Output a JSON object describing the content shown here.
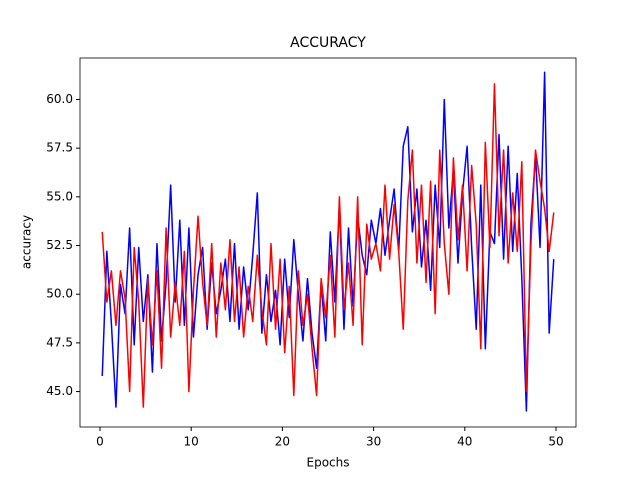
{
  "chart_data": {
    "type": "line",
    "title": "ACCURACY",
    "xlabel": "Epochs",
    "ylabel": "accuracy",
    "x": [
      0.25,
      0.75,
      1.25,
      1.75,
      2.25,
      2.75,
      3.25,
      3.75,
      4.25,
      4.75,
      5.25,
      5.75,
      6.25,
      6.75,
      7.25,
      7.75,
      8.25,
      8.75,
      9.25,
      9.75,
      10.25,
      10.75,
      11.25,
      11.75,
      12.25,
      12.75,
      13.25,
      13.75,
      14.25,
      14.75,
      15.25,
      15.75,
      16.25,
      16.75,
      17.25,
      17.75,
      18.25,
      18.75,
      19.25,
      19.75,
      20.25,
      20.75,
      21.25,
      21.75,
      22.25,
      22.75,
      23.25,
      23.75,
      24.25,
      24.75,
      25.25,
      25.75,
      26.25,
      26.75,
      27.25,
      27.75,
      28.25,
      28.75,
      29.25,
      29.75,
      30.25,
      30.75,
      31.25,
      31.75,
      32.25,
      32.75,
      33.25,
      33.75,
      34.25,
      34.75,
      35.25,
      35.75,
      36.25,
      36.75,
      37.25,
      37.75,
      38.25,
      38.75,
      39.25,
      39.75,
      40.25,
      40.75,
      41.25,
      41.75,
      42.25,
      42.75,
      43.25,
      43.75,
      44.25,
      44.75,
      45.25,
      45.75,
      46.25,
      46.75,
      47.25,
      47.75,
      48.25,
      48.75,
      49.25,
      49.75
    ],
    "series": [
      {
        "color": "#0000ff",
        "values": [
          45.8,
          52.2,
          48.5,
          44.2,
          50.5,
          49,
          53.4,
          47.4,
          52.4,
          48.6,
          51,
          46,
          52.6,
          47.6,
          50.6,
          55.6,
          49.6,
          53.8,
          48.4,
          53.4,
          47.8,
          51,
          52.4,
          48.2,
          51.6,
          49,
          50.2,
          51.8,
          48.6,
          52.6,
          48.2,
          51.4,
          49.2,
          52,
          55.2,
          48,
          51,
          48.6,
          50.2,
          47.4,
          51.8,
          48.8,
          52.8,
          50,
          47.6,
          50.8,
          48,
          46.2,
          50.6,
          47.6,
          53.2,
          49.6,
          54.6,
          48.2,
          53.4,
          49.4,
          54,
          52,
          51,
          53.8,
          52.6,
          54.4,
          52,
          53.8,
          55.4,
          52.2,
          57.6,
          58.6,
          53.2,
          55.4,
          51.4,
          53.8,
          50.2,
          55.6,
          52.4,
          60,
          53.4,
          56.4,
          51.6,
          55.2,
          57.6,
          52.4,
          48.2,
          55.6,
          47.2,
          53.2,
          52.6,
          58.2,
          51.8,
          57.6,
          52.2,
          56.2,
          50.8,
          44,
          53.6,
          57.2,
          52.4,
          61.4,
          48,
          51.8
        ]
      },
      {
        "color": "#ff0000",
        "values": [
          53.2,
          49.6,
          51.2,
          48.4,
          51.2,
          49.8,
          45,
          52.4,
          49.6,
          44.2,
          50.8,
          47.4,
          51.2,
          46.2,
          53.4,
          47.8,
          50.6,
          48.4,
          52.2,
          45,
          50.2,
          54,
          50.6,
          48.4,
          52.6,
          47.8,
          51.6,
          49.2,
          52.8,
          48.6,
          51.4,
          47.8,
          50.4,
          48.6,
          52,
          49.2,
          47.4,
          52.6,
          48.2,
          51.8,
          47,
          50.4,
          44.8,
          51.2,
          48.4,
          50,
          47.2,
          44.8,
          50.8,
          48.8,
          52,
          47.8,
          55,
          49.2,
          51.6,
          48.4,
          55,
          47.4,
          53.6,
          51.8,
          52.6,
          51.2,
          55.6,
          51.8,
          54.6,
          52.2,
          48.2,
          54.8,
          57.4,
          51.6,
          55.6,
          50.6,
          55.8,
          49,
          57.4,
          52.6,
          50,
          57,
          52.8,
          55.6,
          51.2,
          56.6,
          53.6,
          47.2,
          57.8,
          52.4,
          60.8,
          53,
          57.4,
          51.6,
          55.2,
          52.2,
          56.8,
          45,
          52.6,
          57.4,
          55.8,
          54.4,
          52.2,
          54.2
        ]
      }
    ],
    "xlim": [
      -2.19,
      52.19
    ],
    "ylim": [
      43.18,
      62.13
    ],
    "xticks": [
      0,
      10,
      20,
      30,
      40,
      50
    ],
    "yticks": [
      {
        "value": 45,
        "label": "45.0"
      },
      {
        "value": 47.5,
        "label": "47.5"
      },
      {
        "value": 50,
        "label": "50.0"
      },
      {
        "value": 52.5,
        "label": "52.5"
      },
      {
        "value": 55,
        "label": "55.0"
      },
      {
        "value": 57.5,
        "label": "57.5"
      },
      {
        "value": 60,
        "label": "60.0"
      }
    ]
  }
}
